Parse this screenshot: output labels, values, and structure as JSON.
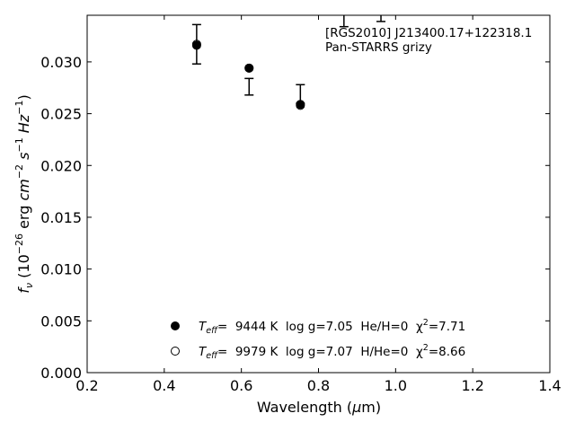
{
  "chart_data": {
    "type": "scatter",
    "title": "",
    "annotation_lines": [
      "[RGS2010] J213400.17+122318.1",
      "Pan-STARRS grizy"
    ],
    "annotation_position": "top-right",
    "xlabel": "Wavelength (μm)",
    "ylabel": "f_ν (10^-26 erg cm^-2 s^-1 Hz^-1)",
    "xlim": [
      0.2,
      1.4
    ],
    "ylim": [
      0.0,
      0.0345
    ],
    "xticks": [
      0.2,
      0.4,
      0.6,
      0.8,
      1.0,
      1.2,
      1.4
    ],
    "xtick_labels": [
      "0.2",
      "0.4",
      "0.6",
      "0.8",
      "1.0",
      "1.2",
      "1.4"
    ],
    "yticks": [
      0.0,
      0.005,
      0.01,
      0.015,
      0.02,
      0.025,
      0.03
    ],
    "ytick_labels": [
      "0.000",
      "0.005",
      "0.010",
      "0.015",
      "0.020",
      "0.025",
      "0.030"
    ],
    "grid": false,
    "legend_position": "lower-center",
    "observed": {
      "x": [
        0.484,
        0.62,
        0.753,
        0.866,
        0.962
      ],
      "y": [
        0.0317,
        0.0276,
        0.0269,
        0.036,
        0.036
      ],
      "yerr": [
        0.0019,
        0.0008,
        0.0009,
        0.0026,
        0.0021
      ]
    },
    "series": [
      {
        "marker": "filled-circle",
        "label_parts": [
          "T",
          "eff",
          "=  9444 K  log g=7.05  He/H=0  χ",
          "2",
          "=7.71"
        ],
        "x": [
          0.484,
          0.62,
          0.753
        ],
        "y": [
          0.0316,
          0.0294,
          0.0259
        ]
      },
      {
        "marker": "open-circle",
        "label_parts": [
          "T",
          "eff",
          "=  9979 K  log g=7.07  H/He=0  χ",
          "2",
          "=8.66"
        ],
        "x": [
          0.484,
          0.62,
          0.753
        ],
        "y": [
          0.0317,
          0.0294,
          0.0258
        ]
      }
    ]
  }
}
